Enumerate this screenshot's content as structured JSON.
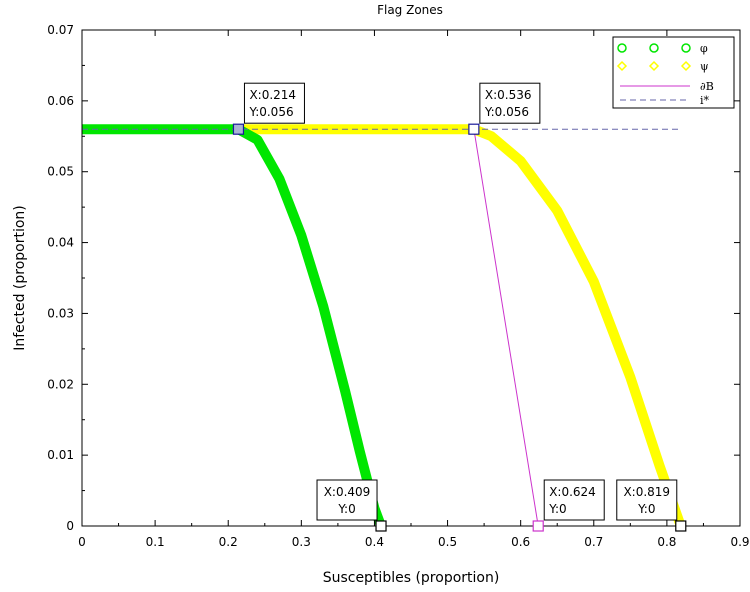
{
  "chart_data": {
    "type": "line",
    "title": "Flag Zones",
    "xlabel": "Susceptibles (proportion)",
    "ylabel": "Infected (proportion)",
    "xlim": [
      0,
      0.9
    ],
    "ylim": [
      0,
      0.07
    ],
    "x_ticks": [
      "0",
      "0.1",
      "0.2",
      "0.3",
      "0.4",
      "0.5",
      "0.6",
      "0.7",
      "0.8",
      "0.9"
    ],
    "y_ticks": [
      "0",
      "0.01",
      "0.02",
      "0.03",
      "0.04",
      "0.05",
      "0.06",
      "0.07"
    ],
    "grid": false,
    "legend_position": "top-right",
    "series": [
      {
        "name": "φ",
        "color": "#00e600",
        "marker": "circle",
        "x": [
          0,
          0.1,
          0.2,
          0.214,
          0.24,
          0.27,
          0.3,
          0.33,
          0.36,
          0.38,
          0.4,
          0.409
        ],
        "y": [
          0.056,
          0.056,
          0.056,
          0.056,
          0.0545,
          0.049,
          0.041,
          0.031,
          0.019,
          0.0105,
          0.0025,
          0
        ]
      },
      {
        "name": "ψ",
        "color": "#ffff00",
        "marker": "diamond",
        "x": [
          0.214,
          0.3,
          0.4,
          0.5,
          0.536,
          0.56,
          0.6,
          0.65,
          0.7,
          0.75,
          0.79,
          0.819
        ],
        "y": [
          0.056,
          0.056,
          0.056,
          0.056,
          0.056,
          0.055,
          0.0515,
          0.0445,
          0.0345,
          0.021,
          0.0085,
          0
        ]
      },
      {
        "name": "∂B",
        "color": "#cc33cc",
        "style": "solid",
        "x": [
          0.536,
          0.624
        ],
        "y": [
          0.056,
          0
        ]
      },
      {
        "name": "i*",
        "color": "#6666aa",
        "style": "dashed",
        "x": [
          0,
          0.82
        ],
        "y": [
          0.056,
          0.056
        ]
      }
    ],
    "datatips": [
      {
        "x": 0.214,
        "y": 0.056,
        "x_text": "X:0.214",
        "y_text": "Y:0.056",
        "box_position": "above-right",
        "marker_fill": "#aab4d4",
        "marker_stroke": "#1a1a99"
      },
      {
        "x": 0.536,
        "y": 0.056,
        "x_text": "X:0.536",
        "y_text": "Y:0.056",
        "box_position": "above-right",
        "marker_fill": "#ffffff",
        "marker_stroke": "#1a1a99"
      },
      {
        "x": 0.409,
        "y": 0,
        "x_text": "X:0.409",
        "y_text": "Y:0",
        "box_position": "above-left",
        "marker_fill": "#ffffff",
        "marker_stroke": "#000000"
      },
      {
        "x": 0.624,
        "y": 0,
        "x_text": "X:0.624",
        "y_text": "Y:0",
        "box_position": "above-right",
        "marker_fill": "#ffffff",
        "marker_stroke": "#cc33cc"
      },
      {
        "x": 0.819,
        "y": 0,
        "x_text": "X:0.819",
        "y_text": "Y:0",
        "box_position": "above-left",
        "marker_fill": "#ffffff",
        "marker_stroke": "#000000"
      }
    ]
  }
}
